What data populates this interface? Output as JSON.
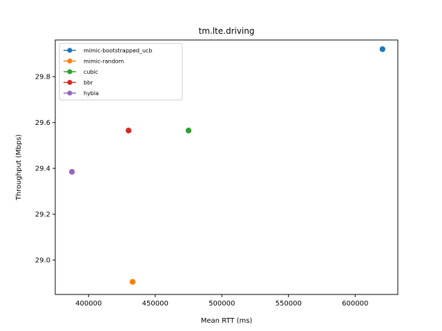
{
  "chart_data": {
    "type": "scatter",
    "title": "tm.lte.driving",
    "xlabel": "Mean RTT (ms)",
    "ylabel": "Throughput (Mbps)",
    "xlim": [
      375000,
      632000
    ],
    "ylim": [
      28.85,
      29.96
    ],
    "xticks": [
      400000,
      450000,
      500000,
      550000,
      600000
    ],
    "yticks": [
      29.0,
      29.2,
      29.4,
      29.6,
      29.8
    ],
    "xtick_labels": [
      "400000",
      "450000",
      "500000",
      "550000",
      "600000"
    ],
    "ytick_labels": [
      "29.0",
      "29.2",
      "29.4",
      "29.6",
      "29.8"
    ],
    "legend_position": "top-left",
    "series": [
      {
        "name": "mimic-bootstrapped_ucb",
        "color": "#1f77b4",
        "points": [
          {
            "x": 620500,
            "y": 29.92
          }
        ]
      },
      {
        "name": "mimic-random",
        "color": "#ff7f0e",
        "points": [
          {
            "x": 433000,
            "y": 28.905
          }
        ]
      },
      {
        "name": "cubic",
        "color": "#2ca02c",
        "points": [
          {
            "x": 475000,
            "y": 29.565
          }
        ]
      },
      {
        "name": "bbr",
        "color": "#d62728",
        "points": [
          {
            "x": 430000,
            "y": 29.565
          }
        ]
      },
      {
        "name": "hybla",
        "color": "#9467bd",
        "points": [
          {
            "x": 387500,
            "y": 29.385
          }
        ]
      }
    ]
  }
}
